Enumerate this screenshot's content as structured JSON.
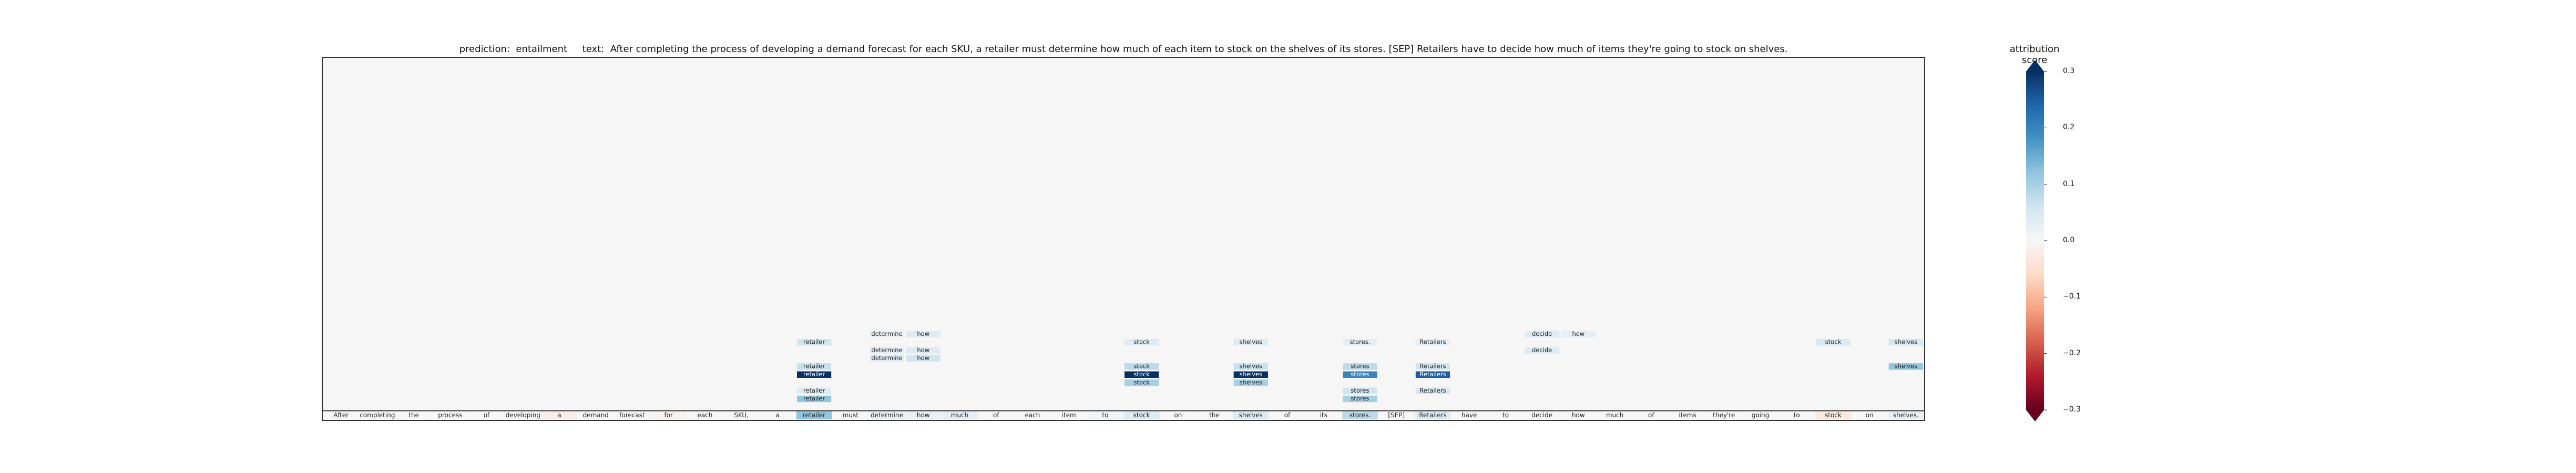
{
  "header": {
    "prediction_label": "prediction:",
    "prediction": "entailment",
    "text_label": "text:",
    "text": "After completing the process of developing a demand forecast for each SKU, a retailer must determine how much of each item to stock on the shelves of its stores. [SEP] Retailers have to decide how much of items they're going to stock on shelves."
  },
  "colorbar": {
    "label": "attribution score",
    "ticks": [
      "0.3",
      "0.2",
      "0.1",
      "0.0",
      "−0.1",
      "−0.2",
      "−0.3"
    ],
    "tick_values": [
      0.3,
      0.2,
      0.1,
      0.0,
      -0.1,
      -0.2,
      -0.3
    ],
    "colors": [
      "#67001f",
      "#b2182b",
      "#d6604d",
      "#f4a582",
      "#fddbc7",
      "#f7f7f7",
      "#d1e5f0",
      "#92c5de",
      "#4393c3",
      "#2166ac",
      "#053061"
    ]
  },
  "chart_data": {
    "type": "heatmap",
    "title": "prediction:  entailment     text:  After completing the process of developing a demand forecast for each SKU, a retailer must determine how much of each item to stock on the shelves of its stores. [SEP] Retailers have to decide how much of items they're going to stock on shelves.",
    "clim": [
      -0.3,
      0.3
    ],
    "tokens": [
      "After",
      "completing",
      "the",
      "process",
      "of",
      "developing",
      "a",
      "demand",
      "forecast",
      "for",
      "each",
      "SKU,",
      "a",
      "retailer",
      "must",
      "determine",
      "how",
      "much",
      "of",
      "each",
      "item",
      "to",
      "stock",
      "on",
      "the",
      "shelves",
      "of",
      "its",
      "stores.",
      "[SEP]",
      "Retailers",
      "have",
      "to",
      "decide",
      "how",
      "much",
      "of",
      "items",
      "they're",
      "going",
      "to",
      "stock",
      "on",
      "shelves."
    ],
    "bottom_row_scores": [
      0,
      0,
      0,
      0,
      0,
      0,
      -0.02,
      0,
      0,
      -0.01,
      0,
      0,
      0,
      0.12,
      0,
      0.02,
      0.02,
      0.03,
      0,
      0,
      0,
      0.01,
      0.04,
      0,
      0,
      0.04,
      0,
      0,
      0.08,
      0,
      0.04,
      0,
      0,
      0,
      0,
      0,
      0,
      0,
      0,
      0,
      0,
      -0.03,
      0,
      0.02
    ],
    "layers": [
      {
        "layer": 9,
        "cells": [
          {
            "token_index": 15,
            "text": "determine",
            "score": 0.02
          },
          {
            "token_index": 16,
            "text": "how",
            "score": 0.04
          },
          {
            "token_index": 33,
            "text": "decide",
            "score": 0.04
          },
          {
            "token_index": 34,
            "text": "how",
            "score": 0.03
          }
        ]
      },
      {
        "layer": 8,
        "cells": [
          {
            "token_index": 13,
            "text": "retailer",
            "score": 0.06
          },
          {
            "token_index": 22,
            "text": "stock",
            "score": 0.04
          },
          {
            "token_index": 25,
            "text": "shelves",
            "score": 0.04
          },
          {
            "token_index": 28,
            "text": "stores.",
            "score": 0.03
          },
          {
            "token_index": 30,
            "text": "Retailers",
            "score": 0.03
          },
          {
            "token_index": 41,
            "text": "stock",
            "score": 0.05
          },
          {
            "token_index": 43,
            "text": "shelves",
            "score": 0.05
          }
        ]
      },
      {
        "layer": 7,
        "cells": [
          {
            "token_index": 15,
            "text": "determine",
            "score": 0.03
          },
          {
            "token_index": 16,
            "text": "how",
            "score": 0.04
          },
          {
            "token_index": 33,
            "text": "decide",
            "score": 0.04
          }
        ]
      },
      {
        "layer": 6,
        "cells": [
          {
            "token_index": 15,
            "text": "determine",
            "score": 0.04
          },
          {
            "token_index": 16,
            "text": "how",
            "score": 0.06
          }
        ]
      },
      {
        "layer": 5,
        "cells": [
          {
            "token_index": 13,
            "text": "retailer",
            "score": 0.07
          },
          {
            "token_index": 22,
            "text": "stock",
            "score": 0.08
          },
          {
            "token_index": 25,
            "text": "shelves",
            "score": 0.07
          },
          {
            "token_index": 28,
            "text": "stores",
            "score": 0.08
          },
          {
            "token_index": 30,
            "text": "Retailers",
            "score": 0.06
          },
          {
            "token_index": 43,
            "text": "shelves",
            "score": 0.12
          }
        ]
      },
      {
        "layer": 4,
        "cells": [
          {
            "token_index": 13,
            "text": "retailer",
            "score": 0.3
          },
          {
            "token_index": 22,
            "text": "stock",
            "score": 0.3
          },
          {
            "token_index": 25,
            "text": "shelves",
            "score": 0.3
          },
          {
            "token_index": 28,
            "text": "stores",
            "score": 0.2
          },
          {
            "token_index": 30,
            "text": "Retailers",
            "score": 0.25
          }
        ]
      },
      {
        "layer": 3,
        "cells": [
          {
            "token_index": 22,
            "text": "stock",
            "score": 0.1
          },
          {
            "token_index": 25,
            "text": "shelves",
            "score": 0.1
          }
        ]
      },
      {
        "layer": 2,
        "cells": [
          {
            "token_index": 13,
            "text": "retailer",
            "score": 0.04
          },
          {
            "token_index": 28,
            "text": "stores",
            "score": 0.06
          },
          {
            "token_index": 30,
            "text": "Retailers",
            "score": 0.05
          }
        ]
      },
      {
        "layer": 1,
        "cells": [
          {
            "token_index": 13,
            "text": "retailer",
            "score": 0.12
          },
          {
            "token_index": 28,
            "text": "stores",
            "score": 0.1
          }
        ]
      }
    ]
  }
}
